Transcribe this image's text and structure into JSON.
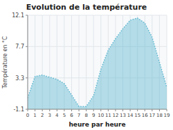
{
  "chart_data": {
    "type": "area",
    "title": "Evolution de la température",
    "x_label": "heure par heure",
    "y_label": "Température en °C",
    "x": [
      0,
      1,
      2,
      3,
      4,
      5,
      6,
      7,
      8,
      9,
      10,
      11,
      12,
      13,
      14,
      15,
      16,
      17,
      18,
      19
    ],
    "values": [
      0.5,
      3.5,
      3.7,
      3.4,
      3.1,
      2.5,
      0.9,
      -0.7,
      -0.7,
      0.8,
      4.5,
      7.2,
      8.8,
      10.2,
      11.4,
      11.7,
      11.0,
      9.0,
      5.5,
      2.0
    ],
    "color": "#60b8d0",
    "line_style": "dotted",
    "xlim": [
      0,
      19
    ],
    "xticks": [
      0,
      1,
      2,
      3,
      4,
      5,
      6,
      7,
      8,
      9,
      10,
      11,
      12,
      13,
      14,
      15,
      16,
      17,
      18,
      19
    ],
    "ylim": [
      -1.1,
      12.1
    ],
    "yticks": [
      -1.1,
      3.3,
      7.7,
      12.1
    ],
    "grid": true
  }
}
